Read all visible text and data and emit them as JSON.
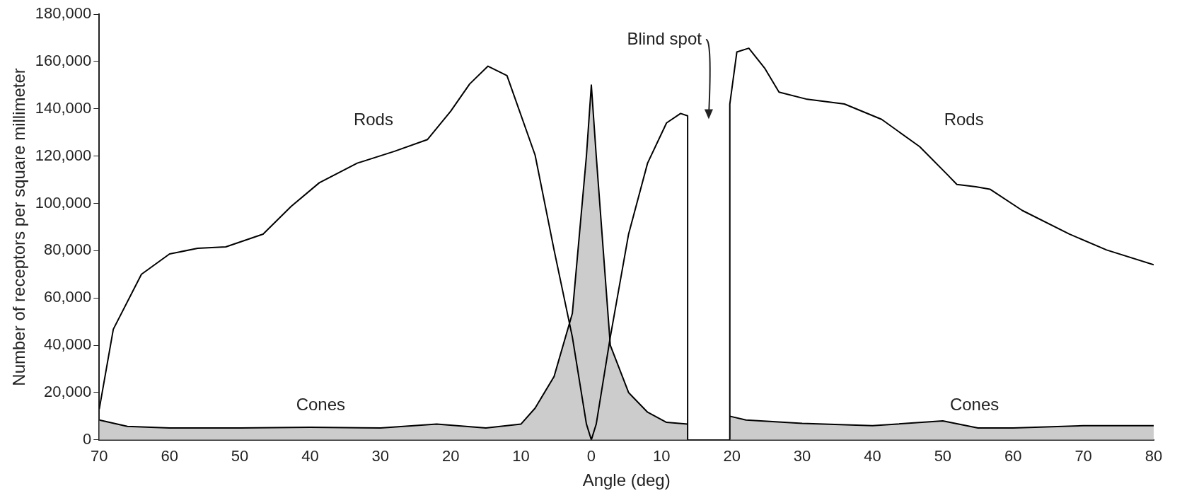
{
  "chart_data": {
    "type": "line",
    "xlabel": "Angle (deg)",
    "ylabel": "Number of receptors per square millimeter",
    "xlim": [
      -70,
      80
    ],
    "xticks": [
      {
        "value": -70,
        "label": "70"
      },
      {
        "value": -60,
        "label": "60"
      },
      {
        "value": -50,
        "label": "50"
      },
      {
        "value": -40,
        "label": "40"
      },
      {
        "value": -30,
        "label": "30"
      },
      {
        "value": -20,
        "label": "20"
      },
      {
        "value": -10,
        "label": "10"
      },
      0,
      10,
      20,
      30,
      40,
      50,
      60,
      70,
      80
    ],
    "ylim": [
      0,
      180000
    ],
    "yticks": [
      0,
      {
        "value": 20000,
        "label": "20,000"
      },
      {
        "value": 40000,
        "label": "40,000"
      },
      {
        "value": 60000,
        "label": "60,000"
      },
      {
        "value": 80000,
        "label": "80,000"
      },
      {
        "value": 100000,
        "label": "100,000"
      },
      {
        "value": 120000,
        "label": "120,000"
      },
      {
        "value": 140000,
        "label": "140,000"
      },
      {
        "value": 160000,
        "label": "160,000"
      },
      {
        "value": 180000,
        "label": "180,000"
      }
    ],
    "marker": "none",
    "grid": false,
    "legend": false,
    "series": [
      {
        "type": "line",
        "name": "Rods",
        "color": "#000000",
        "x": [
          -70,
          -68,
          -64,
          -60,
          -56,
          -52,
          -46.7,
          -42.7,
          -38.7,
          -33.3,
          -28,
          -23.3,
          -20,
          -17.3,
          -14.7,
          -12,
          -8,
          -5.3,
          -2.7,
          -0.7,
          0,
          0.7,
          2.7,
          5.3,
          8,
          10.7,
          12.7,
          13.7,
          13.7,
          16,
          19.7,
          19.7,
          20.7,
          22.4,
          24.7,
          26.7,
          30.7,
          36,
          41.3,
          46.7,
          50.7,
          52,
          54.7,
          56.7,
          61.3,
          68,
          73.3,
          80
        ],
        "values": [
          13000,
          46800,
          70000,
          78600,
          81000,
          81600,
          87000,
          98700,
          108700,
          117000,
          122000,
          127000,
          139000,
          150500,
          158000,
          154000,
          120400,
          80300,
          43500,
          6700,
          0,
          6700,
          43500,
          87000,
          117000,
          134000,
          138000,
          137000,
          0,
          null,
          0,
          142000,
          164000,
          165600,
          157000,
          147000,
          144000,
          142000,
          135500,
          124000,
          112000,
          108000,
          107000,
          106000,
          97000,
          87000,
          80300,
          74000
        ]
      },
      {
        "type": "area",
        "name": "Cones",
        "color": "#cccccc",
        "x": [
          -70,
          -66,
          -60,
          -50,
          -40,
          -30,
          -22,
          -15,
          -10,
          -8,
          -5.3,
          -2.7,
          -0.7,
          0,
          0.7,
          2.7,
          5.3,
          8,
          10.7,
          13.7,
          16,
          19.7,
          22,
          30,
          40,
          50,
          55,
          60,
          70,
          80
        ],
        "values": [
          8400,
          5700,
          5000,
          5000,
          5300,
          5000,
          6700,
          5000,
          6700,
          13400,
          26800,
          53500,
          120000,
          150000,
          120000,
          40000,
          20000,
          11700,
          7400,
          6700,
          null,
          10000,
          8400,
          7000,
          6000,
          8000,
          5000,
          5000,
          6000,
          6000
        ]
      }
    ],
    "annotations": [
      "Blind spot"
    ]
  }
}
